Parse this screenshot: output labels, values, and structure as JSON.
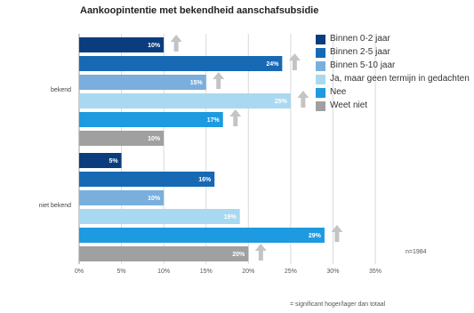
{
  "chart_data": {
    "type": "bar",
    "orientation": "horizontal",
    "title": "Aankoopintentie met bekendheid aanschafsubsidie",
    "categories": [
      "bekend",
      "niet bekend"
    ],
    "series": [
      {
        "name": "Binnen 0-2 jaar",
        "color": "#0b3d7e",
        "values": [
          10,
          5
        ],
        "labels": [
          "10%",
          "5%"
        ],
        "significant": [
          "higher",
          null
        ]
      },
      {
        "name": "Binnen 2-5 jaar",
        "color": "#1769b4",
        "values": [
          24,
          16
        ],
        "labels": [
          "24%",
          "16%"
        ],
        "significant": [
          "higher",
          null
        ]
      },
      {
        "name": "Binnen 5-10 jaar",
        "color": "#7aaedc",
        "values": [
          15,
          10
        ],
        "labels": [
          "15%",
          "10%"
        ],
        "significant": [
          "higher",
          null
        ]
      },
      {
        "name": "Ja, maar geen termijn in gedachten",
        "color": "#a9d9f0",
        "values": [
          25,
          19
        ],
        "labels": [
          "25%",
          "19%"
        ],
        "significant": [
          "higher",
          null
        ]
      },
      {
        "name": "Nee",
        "color": "#1e9ae0",
        "values": [
          17,
          29
        ],
        "labels": [
          "17%",
          "29%"
        ],
        "significant": [
          "higher",
          "higher"
        ]
      },
      {
        "name": "Weet niet",
        "color": "#a0a0a0",
        "values": [
          10,
          20
        ],
        "labels": [
          "10%",
          "20%"
        ],
        "significant": [
          null,
          "higher"
        ]
      }
    ],
    "xlim": [
      0,
      35
    ],
    "xticks": [
      "0%",
      "5%",
      "10%",
      "15%",
      "20%",
      "25%",
      "30%",
      "35%"
    ],
    "legend_position": "right",
    "grid": true
  },
  "sample_note": "n=1984",
  "footnote": "= significant hoger/lager dan totaal"
}
